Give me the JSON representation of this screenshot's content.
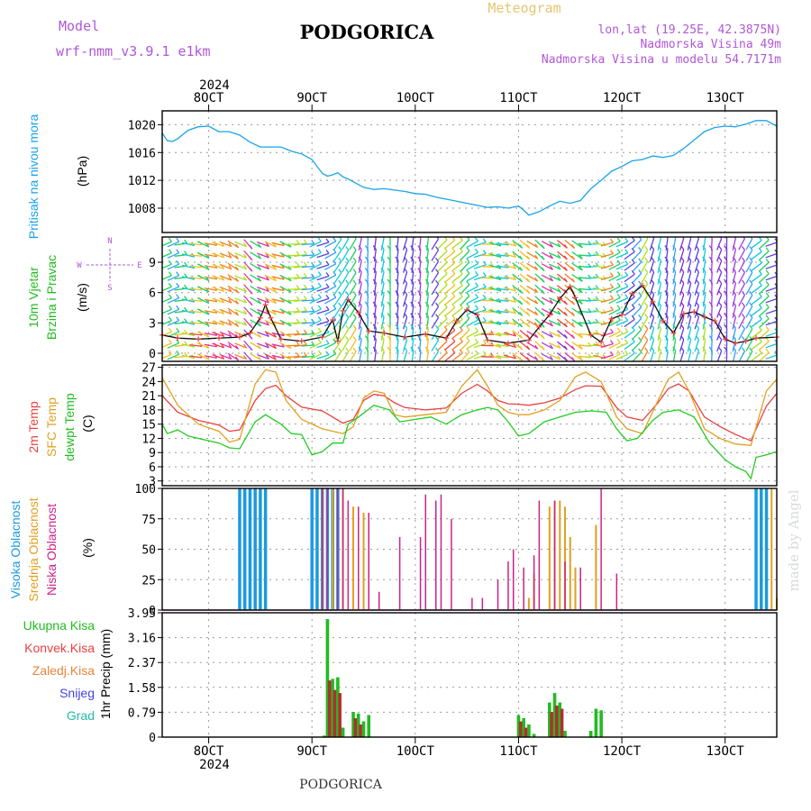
{
  "header": {
    "model_label": "Model",
    "model_name": "wrf-nmm_v3.9.1  e1km",
    "city": "PODGORICA",
    "meteogram": "Meteogram",
    "lonlat": "lon,lat (19.25E, 42.3875N)",
    "elevation": "Nadmorska Visina 49m",
    "model_elevation": "Nadmorska Visina u modelu 54.7171m",
    "watermark": "made by Angel",
    "footer_city": "PODGORICA"
  },
  "colors": {
    "pressure": "#1aa3e8",
    "temp2m": "#e84040",
    "sfc": "#e0a020",
    "dewpt": "#22cc22",
    "high_cloud": "#1a9ae0",
    "mid_cloud": "#e0a020",
    "low_cloud": "#cc2288",
    "total_precip": "#22bb22",
    "conv_precip": "#b03030"
  },
  "time_axis": {
    "top_year": "2024",
    "bottom_year": "2024",
    "ticks": [
      {
        "day": 8,
        "label": "8OCT"
      },
      {
        "day": 9,
        "label": "9OCT"
      },
      {
        "day": 10,
        "label": "10OCT"
      },
      {
        "day": 11,
        "label": "11OCT"
      },
      {
        "day": 12,
        "label": "12OCT"
      },
      {
        "day": 13,
        "label": "13OCT"
      }
    ],
    "range_days": [
      7.55,
      13.5
    ]
  },
  "chart_data": [
    {
      "type": "line",
      "id": "pressure",
      "ylabel_parts": [
        "Pritisak na nivou mora",
        "(hPa)"
      ],
      "ylim": [
        1004.5,
        1022
      ],
      "yticks": [
        1008,
        1012,
        1016,
        1020
      ],
      "series": [
        {
          "x": [
            7.55,
            7.6,
            7.65,
            7.7,
            7.8,
            7.9,
            8.0,
            8.1,
            8.2,
            8.3,
            8.4,
            8.5,
            8.6,
            8.7,
            8.8,
            8.9,
            9.0,
            9.05,
            9.1,
            9.15,
            9.2,
            9.25,
            9.3,
            9.35,
            9.4,
            9.5,
            9.6,
            9.7,
            9.8,
            9.9,
            10.0,
            10.1,
            10.2,
            10.3,
            10.4,
            10.5,
            10.6,
            10.7,
            10.8,
            10.9,
            11.0,
            11.05,
            11.1,
            11.2,
            11.3,
            11.4,
            11.5,
            11.6,
            11.7,
            11.8,
            11.9,
            12.0,
            12.1,
            12.2,
            12.3,
            12.4,
            12.5,
            12.6,
            12.7,
            12.8,
            12.9,
            13.0,
            13.1,
            13.2,
            13.3,
            13.4,
            13.5
          ],
          "values": [
            1018.8,
            1017.7,
            1017.6,
            1018.0,
            1019.2,
            1019.7,
            1019.8,
            1019.0,
            1019.0,
            1018.5,
            1017.5,
            1016.8,
            1016.8,
            1016.8,
            1016.2,
            1015.8,
            1015.0,
            1014.0,
            1013.0,
            1012.6,
            1012.8,
            1013.1,
            1012.5,
            1012.2,
            1011.8,
            1011.0,
            1010.7,
            1010.8,
            1010.6,
            1010.4,
            1010.1,
            1010.0,
            1009.6,
            1009.3,
            1009.0,
            1008.7,
            1008.4,
            1008.1,
            1008.2,
            1008.0,
            1008.3,
            1007.7,
            1007.0,
            1007.5,
            1008.3,
            1009.0,
            1008.7,
            1009.1,
            1010.8,
            1012.0,
            1013.3,
            1014.0,
            1014.8,
            1015.0,
            1015.5,
            1015.3,
            1015.6,
            1016.6,
            1017.8,
            1019.0,
            1019.6,
            1019.8,
            1019.7,
            1020.1,
            1020.6,
            1020.6,
            1019.8
          ]
        }
      ]
    },
    {
      "type": "line",
      "id": "wind",
      "ylabel_parts": [
        "10m Vjetar",
        "Brzina i Pravac",
        "(m/s)"
      ],
      "compass": {
        "n": "N",
        "s": "S",
        "w": "W",
        "e": "E"
      },
      "ylim": [
        -0.8,
        11.5
      ],
      "yticks": [
        0,
        3,
        6,
        9
      ],
      "series": [
        {
          "x": [
            7.55,
            7.7,
            7.9,
            8.1,
            8.3,
            8.4,
            8.5,
            8.55,
            8.6,
            8.7,
            8.9,
            9.1,
            9.2,
            9.25,
            9.3,
            9.35,
            9.45,
            9.55,
            9.7,
            9.9,
            10.1,
            10.3,
            10.4,
            10.5,
            10.6,
            10.7,
            10.9,
            11.1,
            11.2,
            11.3,
            11.4,
            11.5,
            11.55,
            11.7,
            11.8,
            11.9,
            12.0,
            12.1,
            12.2,
            12.3,
            12.4,
            12.5,
            12.6,
            12.7,
            12.8,
            12.9,
            13.0,
            13.1,
            13.2,
            13.3,
            13.5
          ],
          "values": [
            1.8,
            1.5,
            1.4,
            1.5,
            1.6,
            2.0,
            3.5,
            4.8,
            3.5,
            1.4,
            1.2,
            1.6,
            3.3,
            1.2,
            4.2,
            5.3,
            4.0,
            2.2,
            2.0,
            1.6,
            1.9,
            1.5,
            3.2,
            4.3,
            3.8,
            1.3,
            1.0,
            1.3,
            2.6,
            3.8,
            5.4,
            6.6,
            5.5,
            1.8,
            1.1,
            3.4,
            3.8,
            5.9,
            6.7,
            5.1,
            3.2,
            2.0,
            3.9,
            4.1,
            3.6,
            3.2,
            1.4,
            1.0,
            1.2,
            1.5,
            1.6
          ]
        }
      ]
    },
    {
      "type": "line",
      "id": "temperature",
      "ylabel_parts": [
        "2m Temp",
        "SFC Temp",
        "dewpt Temp",
        "(C)"
      ],
      "ylim": [
        2,
        27.5
      ],
      "yticks": [
        3,
        6,
        9,
        12,
        15,
        18,
        21,
        24,
        27
      ],
      "series": [
        {
          "name": "2m Temp",
          "x": [
            7.55,
            7.7,
            7.9,
            8.1,
            8.2,
            8.3,
            8.45,
            8.55,
            8.65,
            8.75,
            8.9,
            9.1,
            9.3,
            9.4,
            9.5,
            9.6,
            9.7,
            9.8,
            9.9,
            10.1,
            10.3,
            10.45,
            10.6,
            10.7,
            10.8,
            10.9,
            11.0,
            11.1,
            11.25,
            11.4,
            11.55,
            11.65,
            11.8,
            11.95,
            12.05,
            12.2,
            12.35,
            12.45,
            12.55,
            12.65,
            12.8,
            12.95,
            13.1,
            13.25,
            13.4,
            13.5
          ],
          "values": [
            21.0,
            17.5,
            15.8,
            14.8,
            13.5,
            13.8,
            20.0,
            22.5,
            23.2,
            21.0,
            18.6,
            17.8,
            15.2,
            16.0,
            20.0,
            21.3,
            21.0,
            19.5,
            18.5,
            18.0,
            18.4,
            21.5,
            23.4,
            22.0,
            20.0,
            19.3,
            19.2,
            19.0,
            19.5,
            20.5,
            22.3,
            23.1,
            23.0,
            18.5,
            16.5,
            15.8,
            19.5,
            22.5,
            23.5,
            22.0,
            16.5,
            14.5,
            12.8,
            11.5,
            18.8,
            21.5
          ]
        },
        {
          "name": "SFC Temp",
          "x": [
            7.55,
            7.7,
            7.9,
            8.1,
            8.2,
            8.3,
            8.45,
            8.55,
            8.65,
            8.75,
            8.9,
            9.1,
            9.3,
            9.4,
            9.5,
            9.6,
            9.7,
            9.8,
            9.9,
            10.1,
            10.3,
            10.45,
            10.6,
            10.7,
            10.8,
            10.9,
            11.0,
            11.1,
            11.25,
            11.4,
            11.55,
            11.65,
            11.8,
            11.95,
            12.05,
            12.2,
            12.35,
            12.45,
            12.55,
            12.65,
            12.8,
            12.95,
            13.1,
            13.25,
            13.4,
            13.5
          ],
          "values": [
            24.8,
            19.0,
            15.0,
            13.5,
            11.2,
            11.8,
            23.5,
            26.5,
            26.0,
            20.0,
            16.0,
            14.0,
            13.0,
            14.5,
            20.5,
            22.0,
            21.5,
            17.0,
            16.5,
            17.0,
            17.5,
            23.0,
            26.5,
            23.0,
            19.0,
            17.5,
            17.0,
            17.0,
            18.0,
            20.0,
            25.0,
            26.0,
            24.0,
            16.5,
            14.0,
            13.0,
            20.0,
            24.5,
            26.0,
            22.0,
            14.0,
            12.0,
            10.8,
            10.5,
            22.0,
            24.5
          ]
        },
        {
          "name": "dewpt Temp",
          "x": [
            7.55,
            7.6,
            7.7,
            7.8,
            7.9,
            8.1,
            8.2,
            8.3,
            8.45,
            8.55,
            8.7,
            8.8,
            8.9,
            9.0,
            9.1,
            9.2,
            9.3,
            9.35,
            9.45,
            9.6,
            9.75,
            9.85,
            10.0,
            10.15,
            10.3,
            10.45,
            10.6,
            10.7,
            10.8,
            10.9,
            11.0,
            11.1,
            11.25,
            11.4,
            11.55,
            11.7,
            11.85,
            11.95,
            12.05,
            12.15,
            12.3,
            12.4,
            12.55,
            12.7,
            12.85,
            13.0,
            13.1,
            13.2,
            13.25,
            13.3,
            13.4,
            13.5
          ],
          "values": [
            15.0,
            13.0,
            13.8,
            12.5,
            12.0,
            11.0,
            10.0,
            9.8,
            15.5,
            17.0,
            15.0,
            13.0,
            12.8,
            8.5,
            9.2,
            11.0,
            11.0,
            15.0,
            16.5,
            19.0,
            18.0,
            15.5,
            16.0,
            16.5,
            15.0,
            17.0,
            18.0,
            18.5,
            18.0,
            15.5,
            12.5,
            13.0,
            15.5,
            16.5,
            17.5,
            17.8,
            17.5,
            14.0,
            11.5,
            12.0,
            15.8,
            17.5,
            18.0,
            16.5,
            11.0,
            7.5,
            6.0,
            5.0,
            3.5,
            8.0,
            8.5,
            9.2
          ]
        }
      ]
    },
    {
      "type": "bar",
      "id": "clouds",
      "ylabel_parts": [
        "Visoka Oblacnost",
        "Srednja Oblacnost",
        "Niska Oblacnost",
        "(%)"
      ],
      "ylim": [
        0,
        100
      ],
      "yticks": [
        0,
        25,
        50,
        75,
        100
      ],
      "series": [
        {
          "name": "Visoka Oblacnost",
          "x": [
            8.3,
            8.35,
            8.4,
            8.45,
            8.5,
            8.55,
            9.0,
            9.05,
            9.1,
            9.15,
            9.2,
            9.25,
            13.3,
            13.35,
            13.4
          ],
          "values": [
            100,
            100,
            100,
            100,
            100,
            100,
            100,
            100,
            100,
            100,
            100,
            100,
            100,
            100,
            100
          ]
        },
        {
          "name": "Srednja Oblacnost",
          "x": [
            9.1,
            9.2,
            9.3,
            9.4,
            9.5,
            11.1,
            11.15,
            11.3,
            11.35,
            11.4,
            11.45,
            11.5,
            11.55,
            11.75,
            13.45,
            13.5
          ],
          "values": [
            100,
            100,
            100,
            85,
            80,
            10,
            30,
            85,
            90,
            90,
            85,
            60,
            35,
            70,
            100,
            10
          ]
        },
        {
          "name": "Niska Oblacnost",
          "x": [
            9.1,
            9.15,
            9.25,
            9.3,
            9.35,
            9.45,
            9.55,
            9.65,
            9.85,
            10.05,
            10.1,
            10.2,
            10.25,
            10.35,
            10.55,
            10.65,
            10.8,
            10.9,
            10.95,
            11.05,
            11.15,
            11.2,
            11.35,
            11.45,
            11.6,
            11.8,
            11.95
          ],
          "values": [
            100,
            100,
            100,
            100,
            90,
            85,
            80,
            15,
            60,
            60,
            95,
            90,
            95,
            75,
            10,
            10,
            25,
            40,
            50,
            35,
            45,
            90,
            90,
            40,
            35,
            100,
            30
          ]
        }
      ]
    },
    {
      "type": "bar",
      "id": "precip",
      "ylabel_parts": [
        "1hr Precip (mm)"
      ],
      "legend": [
        "Ukupna Kisa",
        "Konvek.Kisa",
        "Zaledj.Kisa",
        "Snijeg",
        "Grad"
      ],
      "ylim": [
        0,
        3.95
      ],
      "yticks": [
        0,
        0.79,
        1.58,
        2.37,
        3.16,
        3.95
      ],
      "ytick_labels": [
        "0",
        "0.79",
        "1.58",
        "2.37",
        "3.16",
        "3.95"
      ],
      "series": [
        {
          "name": "Ukupna Kisa",
          "x": [
            9.12,
            9.15,
            9.2,
            9.25,
            9.3,
            9.4,
            9.45,
            9.5,
            9.55,
            11.0,
            11.05,
            11.1,
            11.15,
            11.3,
            11.35,
            11.4,
            11.45,
            11.7,
            11.75,
            11.8
          ],
          "values": [
            0.05,
            3.75,
            1.85,
            1.9,
            0.3,
            0.8,
            0.75,
            0.5,
            0.7,
            0.7,
            0.6,
            0.4,
            0.1,
            1.1,
            1.4,
            1.1,
            0.2,
            0.2,
            0.9,
            0.85
          ]
        },
        {
          "name": "Konvek.Kisa",
          "x": [
            9.17,
            9.22,
            9.27,
            9.42,
            9.47,
            11.02,
            11.07,
            11.32,
            11.37,
            11.42
          ],
          "values": [
            1.8,
            1.5,
            1.4,
            0.6,
            0.4,
            0.5,
            0.3,
            0.8,
            1.0,
            0.9
          ]
        }
      ]
    }
  ]
}
